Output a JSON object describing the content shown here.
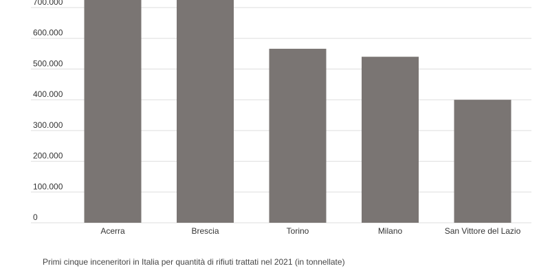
{
  "chart_data": {
    "type": "bar",
    "categories": [
      "Acerra",
      "Brescia",
      "Torino",
      "Milano",
      "San Vittore del Lazio"
    ],
    "values": [
      730000,
      728000,
      566000,
      540000,
      400000
    ],
    "ylim": [
      0,
      700000
    ],
    "yticks": [
      0,
      100000,
      200000,
      300000,
      400000,
      500000,
      600000,
      700000
    ],
    "ytick_labels": [
      "0",
      "100.000",
      "200.000",
      "300.000",
      "400.000",
      "500.000",
      "600.000",
      "700.000"
    ],
    "grid": true,
    "bar_color": "#7a7573",
    "grid_color": "#dddddd"
  },
  "caption": "Primi cinque inceneritori in Italia per quantità di rifiuti trattati nel 2021 (in tonnellate)"
}
